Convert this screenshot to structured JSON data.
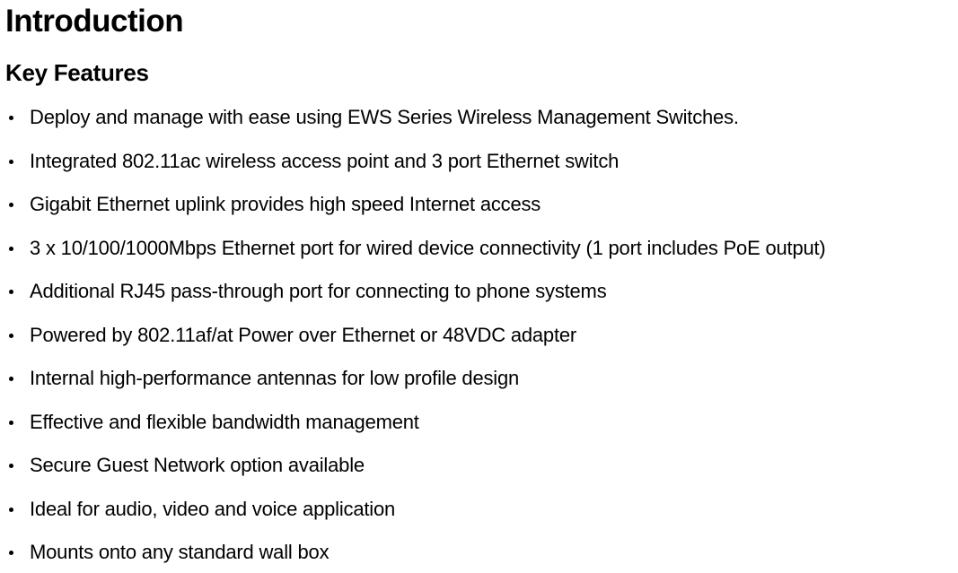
{
  "heading1": "Introduction",
  "heading2": "Key Features",
  "features": [
    "Deploy and manage with ease using EWS Series Wireless Management Switches.",
    "Integrated 802.11ac wireless access point and 3 port Ethernet switch",
    "Gigabit Ethernet uplink provides high speed Internet access",
    "3 x 10/100/1000Mbps Ethernet port for wired device connectivity (1 port includes PoE output)",
    "Additional RJ45 pass-through port for connecting to phone systems",
    "Powered by 802.11af/at Power over Ethernet or 48VDC adapter",
    "Internal high-performance antennas for low profile design",
    "Effective and flexible bandwidth management",
    "Secure Guest Network option available",
    "Ideal for audio, video and voice application",
    "Mounts onto any standard wall box"
  ],
  "colors": {
    "text": "#000000",
    "background": "#ffffff"
  }
}
